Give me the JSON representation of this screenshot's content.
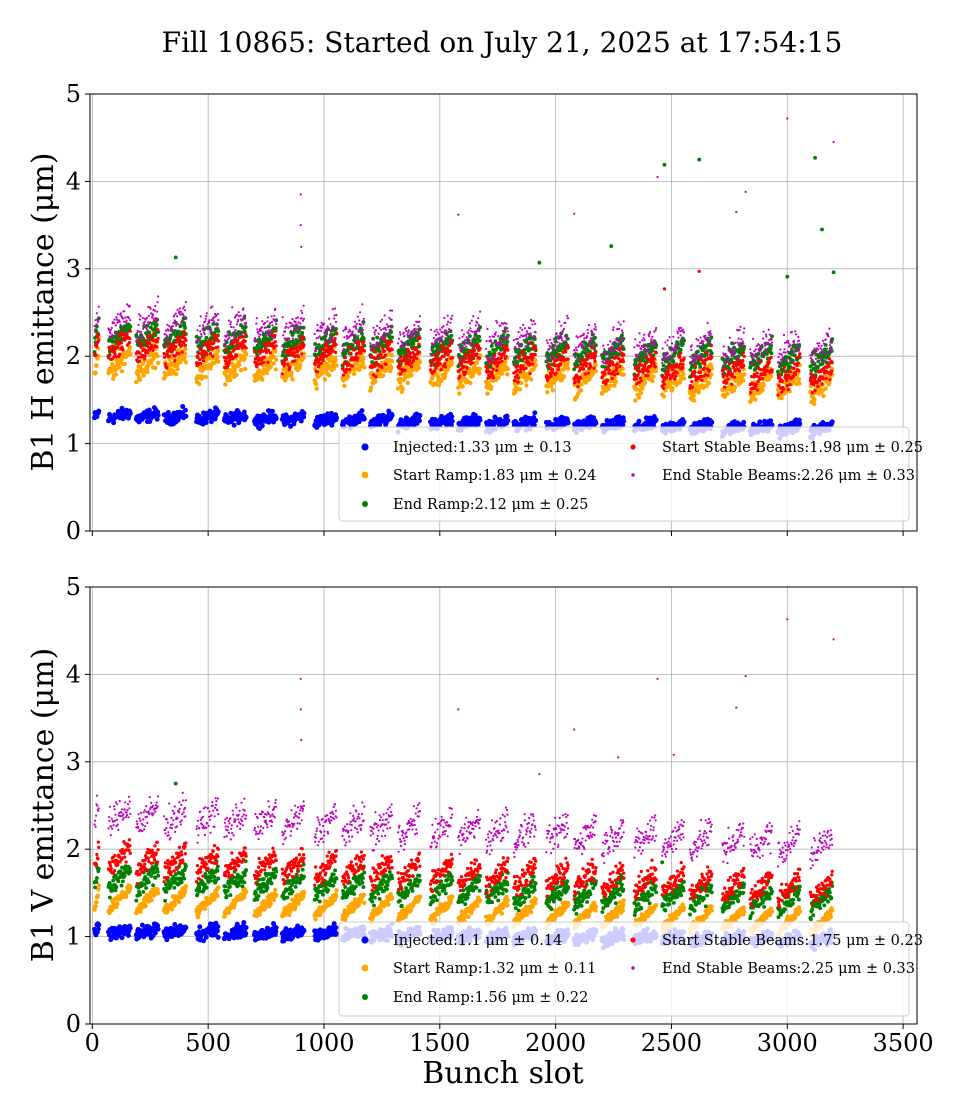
{
  "figure": {
    "title": "Fill 10865: Started on July 21, 2025 at 17:54:15"
  },
  "series_colors": {
    "Injected": "#0000ff",
    "Start Ramp": "#ffa500",
    "End Ramp": "#008000",
    "Start Stable Beams": "#ff0000",
    "End Stable Beams": "#bf00bf"
  },
  "chart_data": [
    {
      "type": "scatter",
      "ylabel": "B1 H emittance (μm)",
      "xlabel": "",
      "xlim": [
        -10,
        3560
      ],
      "ylim": [
        0,
        5
      ],
      "xticks": [
        0,
        500,
        1000,
        1500,
        2000,
        2500,
        3000,
        3500
      ],
      "yticks": [
        0,
        1,
        2,
        3,
        4,
        5
      ],
      "show_xtick_labels": false,
      "grid": true,
      "legend_position": "lower-right",
      "train_starts": [
        10,
        70,
        190,
        310,
        450,
        570,
        700,
        820,
        960,
        1080,
        1200,
        1320,
        1460,
        1580,
        1700,
        1820,
        1960,
        2080,
        2200,
        2340,
        2460,
        2580,
        2720,
        2840,
        2960,
        3100
      ],
      "series": [
        {
          "name": "Injected",
          "legend": "Injected:1.33 μm ± 0.13",
          "mean": 1.33,
          "std": 0.13,
          "marker_size": 4.5
        },
        {
          "name": "Start Ramp",
          "legend": "Start Ramp:1.83 μm ± 0.24",
          "mean": 1.83,
          "std": 0.24,
          "marker_size": 4.0
        },
        {
          "name": "End Ramp",
          "legend": "End Ramp:2.12 μm ± 0.25",
          "mean": 2.12,
          "std": 0.25,
          "marker_size": 3.5
        },
        {
          "name": "Start Stable Beams",
          "legend": "Start Stable Beams:1.98 μm ± 0.25",
          "mean": 1.98,
          "std": 0.25,
          "marker_size": 3.0
        },
        {
          "name": "End Stable Beams",
          "legend": "End Stable Beams:2.26 μm ± 0.33",
          "mean": 2.26,
          "std": 0.33,
          "marker_size": 2.0
        }
      ],
      "outliers": [
        {
          "series": "End Stable Beams",
          "x": 900,
          "y": 3.85
        },
        {
          "series": "End Stable Beams",
          "x": 900,
          "y": 3.5
        },
        {
          "series": "End Stable Beams",
          "x": 902,
          "y": 3.25
        },
        {
          "series": "End Stable Beams",
          "x": 1580,
          "y": 3.62
        },
        {
          "series": "End Stable Beams",
          "x": 2080,
          "y": 3.63
        },
        {
          "series": "End Stable Beams",
          "x": 2440,
          "y": 4.05
        },
        {
          "series": "End Stable Beams",
          "x": 2780,
          "y": 3.65
        },
        {
          "series": "End Stable Beams",
          "x": 2820,
          "y": 3.88
        },
        {
          "series": "End Stable Beams",
          "x": 3000,
          "y": 4.72
        },
        {
          "series": "End Stable Beams",
          "x": 3200,
          "y": 4.45
        },
        {
          "series": "End Ramp",
          "x": 360,
          "y": 3.13
        },
        {
          "series": "End Ramp",
          "x": 1930,
          "y": 3.07
        },
        {
          "series": "End Ramp",
          "x": 2240,
          "y": 3.26
        },
        {
          "series": "End Ramp",
          "x": 2470,
          "y": 4.19
        },
        {
          "series": "End Ramp",
          "x": 2620,
          "y": 4.25
        },
        {
          "series": "End Ramp",
          "x": 3000,
          "y": 2.91
        },
        {
          "series": "End Ramp",
          "x": 3120,
          "y": 4.27
        },
        {
          "series": "End Ramp",
          "x": 3150,
          "y": 3.45
        },
        {
          "series": "End Ramp",
          "x": 3200,
          "y": 2.96
        },
        {
          "series": "Start Stable Beams",
          "x": 2620,
          "y": 2.97
        },
        {
          "series": "Start Stable Beams",
          "x": 2470,
          "y": 2.77
        }
      ]
    },
    {
      "type": "scatter",
      "ylabel": "B1 V emittance (μm)",
      "xlabel": "Bunch slot",
      "xlim": [
        -10,
        3560
      ],
      "ylim": [
        0,
        5
      ],
      "xticks": [
        0,
        500,
        1000,
        1500,
        2000,
        2500,
        3000,
        3500
      ],
      "yticks": [
        0,
        1,
        2,
        3,
        4,
        5
      ],
      "show_xtick_labels": true,
      "grid": true,
      "legend_position": "lower-right",
      "train_starts": [
        10,
        70,
        190,
        310,
        450,
        570,
        700,
        820,
        960,
        1080,
        1200,
        1320,
        1460,
        1580,
        1700,
        1820,
        1960,
        2080,
        2200,
        2340,
        2460,
        2580,
        2720,
        2840,
        2960,
        3100
      ],
      "series": [
        {
          "name": "Injected",
          "legend": "Injected:1.1 μm ± 0.14",
          "mean": 1.1,
          "std": 0.14,
          "marker_size": 4.5
        },
        {
          "name": "Start Ramp",
          "legend": "Start Ramp:1.32 μm ± 0.11",
          "mean": 1.32,
          "std": 0.11,
          "marker_size": 4.0
        },
        {
          "name": "End Ramp",
          "legend": "End Ramp:1.56 μm ± 0.22",
          "mean": 1.56,
          "std": 0.22,
          "marker_size": 3.5
        },
        {
          "name": "Start Stable Beams",
          "legend": "Start Stable Beams:1.75 μm ± 0.23",
          "mean": 1.75,
          "std": 0.23,
          "marker_size": 3.0
        },
        {
          "name": "End Stable Beams",
          "legend": "End Stable Beams:2.25 μm ± 0.33",
          "mean": 2.25,
          "std": 0.33,
          "marker_size": 2.0
        }
      ],
      "outliers": [
        {
          "series": "End Stable Beams",
          "x": 900,
          "y": 3.95
        },
        {
          "series": "End Stable Beams",
          "x": 900,
          "y": 3.6
        },
        {
          "series": "End Stable Beams",
          "x": 902,
          "y": 3.25
        },
        {
          "series": "End Stable Beams",
          "x": 1580,
          "y": 3.6
        },
        {
          "series": "End Stable Beams",
          "x": 1930,
          "y": 2.86
        },
        {
          "series": "End Stable Beams",
          "x": 2080,
          "y": 3.37
        },
        {
          "series": "End Stable Beams",
          "x": 2270,
          "y": 3.05
        },
        {
          "series": "End Stable Beams",
          "x": 2440,
          "y": 3.95
        },
        {
          "series": "End Stable Beams",
          "x": 2510,
          "y": 3.08
        },
        {
          "series": "End Stable Beams",
          "x": 2780,
          "y": 3.62
        },
        {
          "series": "End Stable Beams",
          "x": 2820,
          "y": 3.98
        },
        {
          "series": "End Stable Beams",
          "x": 3000,
          "y": 4.63
        },
        {
          "series": "End Stable Beams",
          "x": 3200,
          "y": 4.4
        },
        {
          "series": "End Ramp",
          "x": 360,
          "y": 2.75
        },
        {
          "series": "End Ramp",
          "x": 2460,
          "y": 1.85
        }
      ]
    }
  ]
}
